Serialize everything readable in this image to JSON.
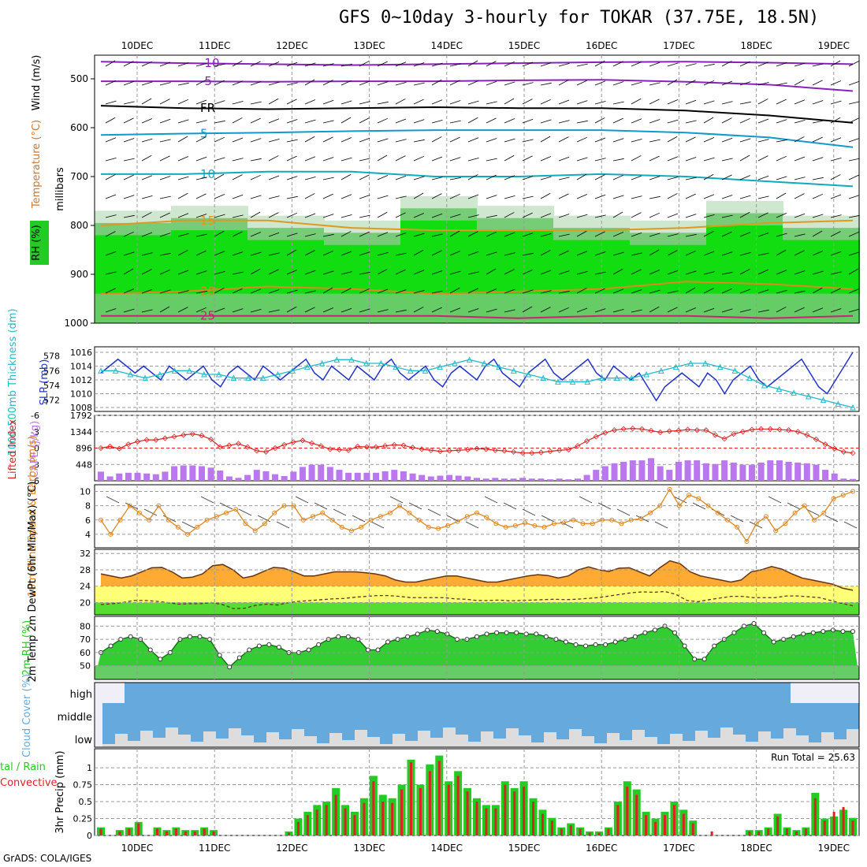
{
  "title": "GFS 0~10day 3-hourly for TOKAR (37.75E, 18.5N)",
  "credit": "GrADS: COLA/IGES",
  "colors": {
    "cyan": "#22bbcc",
    "blue": "#2233cc",
    "red": "#dd2222",
    "purple": "#bb77ee",
    "orange": "#dd8822",
    "green": "#22cc22",
    "cloud": "#66aadd"
  },
  "chart_data": [
    {
      "type": "heatmap",
      "name": "upper-air",
      "x_ticks": [
        "10DEC",
        "11DEC",
        "12DEC",
        "13DEC",
        "14DEC",
        "15DEC",
        "16DEC",
        "17DEC",
        "18DEC",
        "19DEC"
      ],
      "ylabel": "millibars",
      "y_ticks": [
        "500",
        "600",
        "700",
        "800",
        "900",
        "1000"
      ],
      "side_labels": [
        "Wind (m/s)",
        "Temperature (°C)",
        "RH (%)"
      ],
      "isotherms": [
        {
          "label": "-10",
          "p": [
            465,
            468,
            470,
            472,
            470,
            468,
            466,
            465,
            467,
            470
          ]
        },
        {
          "label": "-5",
          "p": [
            505,
            505,
            506,
            505,
            505,
            503,
            502,
            506,
            512,
            525
          ]
        },
        {
          "label": "FR",
          "p": [
            555,
            560,
            562,
            560,
            558,
            560,
            560,
            565,
            575,
            590
          ]
        },
        {
          "label": "5",
          "p": [
            615,
            612,
            610,
            607,
            605,
            605,
            605,
            610,
            620,
            640
          ]
        },
        {
          "label": "10",
          "p": [
            695,
            695,
            690,
            690,
            700,
            700,
            695,
            700,
            710,
            720
          ]
        },
        {
          "label": "15",
          "p": [
            800,
            790,
            790,
            805,
            810,
            810,
            810,
            805,
            795,
            790
          ]
        },
        {
          "label": "20",
          "p": [
            940,
            935,
            925,
            930,
            940,
            935,
            930,
            915,
            920,
            930
          ]
        },
        {
          "label": "25",
          "p": [
            985,
            985,
            985,
            985,
            985,
            990,
            985,
            985,
            990,
            985
          ]
        }
      ]
    },
    {
      "type": "line",
      "name": "slp-thickness",
      "left_label": "1000-500mb Thickness (dm)",
      "right_label": "SLP (mb)",
      "yticks_left": [
        "572",
        "574",
        "576",
        "578"
      ],
      "yticks_right": [
        "1008",
        "1010",
        "1012",
        "1014",
        "1016"
      ],
      "slp": [
        1013,
        1014,
        1015,
        1014,
        1013,
        1014,
        1013,
        1012,
        1014,
        1013,
        1012,
        1013,
        1014,
        1012,
        1011,
        1013,
        1014,
        1013,
        1012,
        1014,
        1013,
        1012,
        1013,
        1014,
        1015,
        1013,
        1012,
        1014,
        1013,
        1012,
        1014,
        1013,
        1012,
        1014,
        1015,
        1013,
        1012,
        1013,
        1014,
        1012,
        1011,
        1013,
        1014,
        1013,
        1012,
        1014,
        1015,
        1013,
        1012,
        1011,
        1013,
        1014,
        1015,
        1013,
        1012,
        1013,
        1014,
        1015,
        1013,
        1012,
        1014,
        1013,
        1012,
        1013,
        1011,
        1009,
        1011,
        1012,
        1013,
        1012,
        1011,
        1013,
        1012,
        1010,
        1012,
        1013,
        1014,
        1012,
        1011,
        1012,
        1013,
        1014,
        1015,
        1013,
        1011,
        1010,
        1012,
        1014,
        1016
      ],
      "thickness": [
        576,
        576,
        575.5,
        575,
        575.5,
        576,
        576,
        575.5,
        575.5,
        575,
        575,
        575,
        575.5,
        576,
        576.5,
        577,
        577.5,
        577.5,
        577,
        577,
        576.5,
        576,
        576,
        576.5,
        577,
        577.5,
        577,
        576.5,
        576,
        575.5,
        575,
        574.5,
        574.5,
        574.5,
        575,
        575,
        575,
        575.5,
        576,
        576.5,
        577,
        577,
        576.5,
        576,
        575,
        574,
        573.5,
        573,
        572.5,
        572,
        571.5,
        571
      ]
    },
    {
      "type": "bar",
      "name": "lifted-cape",
      "left_label": "Lifted Index",
      "right_label": "CAPE (J/kg)",
      "yticks_left": [
        "-6",
        "-3",
        "0",
        "3",
        "6"
      ],
      "yticks_right": [
        "1792",
        "1344",
        "896",
        "448"
      ],
      "cape": [
        250,
        120,
        200,
        220,
        220,
        200,
        180,
        250,
        400,
        420,
        420,
        400,
        360,
        280,
        120,
        80,
        160,
        300,
        260,
        180,
        130,
        250,
        380,
        440,
        440,
        380,
        300,
        220,
        220,
        220,
        220,
        260,
        300,
        260,
        200,
        160,
        120,
        140,
        160,
        140,
        120,
        80,
        60,
        80,
        60,
        60,
        80,
        60,
        60,
        40,
        60,
        40,
        60,
        160,
        300,
        400,
        480,
        520,
        560,
        560,
        620,
        400,
        300,
        520,
        560,
        560,
        480,
        460,
        560,
        500,
        440,
        440,
        500,
        560,
        560,
        520,
        500,
        480,
        440,
        300,
        200,
        60,
        50
      ],
      "lifted": [
        0,
        -0.3,
        0.1,
        -0.7,
        -1.2,
        -1.5,
        -1.5,
        -1.8,
        -2.1,
        -2.4,
        -2.6,
        -2.3,
        -1.6,
        -0.2,
        -0.5,
        -0.8,
        -0.2,
        0.5,
        0.7,
        0,
        -0.6,
        -1.1,
        -1.4,
        -0.9,
        -0.4,
        0.2,
        0.3,
        0.4,
        -0.3,
        -0.2,
        -0.2,
        -0.4,
        -0.6,
        -0.5,
        -0.1,
        0.2,
        0.4,
        0.6,
        0.5,
        0.4,
        0.3,
        0.1,
        0.2,
        0.4,
        0.5,
        0.7,
        0.9,
        0.9,
        0.8,
        0.6,
        0.4,
        0.3,
        -0.4,
        -1.3,
        -2.1,
        -2.8,
        -3.3,
        -3.5,
        -3.6,
        -3.5,
        -3.2,
        -2.9,
        -3.1,
        -3.2,
        -3.4,
        -3.3,
        -3.3,
        -2.4,
        -1.7,
        -2.6,
        -3,
        -3.4,
        -3.5,
        -3.5,
        -3.4,
        -3.3,
        -3,
        -2.4,
        -1.6,
        -0.7,
        0.1,
        0.7,
        0.9
      ]
    },
    {
      "type": "line",
      "name": "wind10m",
      "label": "10m Wind Speed & Barbs (m/s)",
      "yticks": [
        "4",
        "6",
        "8",
        "10"
      ],
      "speed": [
        6,
        4,
        6,
        8,
        7,
        6,
        8,
        6,
        5,
        4,
        5,
        6,
        6.5,
        7,
        7.5,
        5.5,
        4.5,
        5.5,
        7,
        8,
        8,
        6,
        6.5,
        7,
        6,
        5,
        4.5,
        5,
        6,
        6.5,
        7,
        8,
        7,
        6,
        5,
        4.8,
        5.2,
        5.8,
        6.5,
        7,
        6.4,
        5.5,
        5,
        5.2,
        5.6,
        5.2,
        5,
        5.5,
        5.6,
        6,
        5.5,
        5.5,
        6,
        6,
        5.5,
        6,
        6.2,
        7,
        8,
        10.3,
        8,
        9.5,
        9,
        8,
        7,
        6,
        5,
        3,
        5.5,
        6.5,
        4.5,
        5.5,
        7,
        8,
        6,
        7,
        9,
        9.5,
        10
      ]
    },
    {
      "type": "area",
      "name": "temperature",
      "label": "2m Temp 2m DewPt (6hr Min/Max) (°C)",
      "yticks": [
        "20",
        "24",
        "28",
        "32"
      ],
      "temp": [
        27,
        26.5,
        26,
        26.5,
        27.5,
        28.5,
        28.6,
        27.5,
        26,
        26.2,
        27,
        29,
        29.3,
        28,
        26,
        26.5,
        27.6,
        28.6,
        28.4,
        27.5,
        26.5,
        26.5,
        27,
        27.5,
        27.5,
        27.5,
        27.3,
        27,
        26.5,
        25.5,
        25,
        25,
        25.5,
        26,
        26.5,
        26.5,
        26,
        25.5,
        25,
        25,
        25.5,
        26,
        26.5,
        26.8,
        26.6,
        26,
        26.5,
        28,
        28.7,
        28,
        27.6,
        28.4,
        28.5,
        27.5,
        26.5,
        28.5,
        30.2,
        29.5,
        27.5,
        26.5,
        26,
        25.5,
        25,
        25.5,
        27.5,
        28,
        28.8,
        28.2,
        27,
        26,
        25.5,
        25,
        24.5,
        23.5,
        23
      ],
      "dew": [
        19.5,
        19.7,
        20,
        20.5,
        20.5,
        20.3,
        20,
        19.6,
        19.7,
        19.7,
        20,
        19.5,
        18.5,
        18.6,
        19.3,
        19.6,
        19.4,
        20,
        20.3,
        20.5,
        20.7,
        20.9,
        21,
        21.3,
        21.5,
        21.7,
        21.7,
        21.5,
        21.2,
        21.2,
        21.2,
        21.2,
        20.9,
        20.8,
        20.5,
        20.5,
        20.6,
        20.4,
        20.5,
        20.6,
        20.7,
        20.8,
        20.7,
        20.8,
        21,
        21.2,
        21.6,
        22,
        22.4,
        22.6,
        22.5,
        22.7,
        22,
        20.5,
        20.2,
        20.7,
        21.1,
        21.5,
        21.5,
        21.2,
        21.2,
        21.2,
        21.6,
        21.6,
        21.4,
        21.2,
        20.5,
        19.8,
        19.2
      ]
    },
    {
      "type": "area",
      "name": "rh2m",
      "label": "2m RH (%)",
      "yticks": [
        "50",
        "60",
        "70",
        "80"
      ],
      "rh": [
        60,
        65,
        70,
        72,
        70,
        62,
        55,
        60,
        70,
        72,
        72,
        70,
        58,
        49,
        56,
        62,
        65,
        66,
        64,
        60,
        60,
        62,
        66,
        70,
        72,
        72,
        70,
        62,
        62,
        68,
        70,
        72,
        74,
        77,
        76,
        74,
        70,
        70,
        72,
        74,
        75,
        75,
        75,
        74,
        74,
        72,
        70,
        68,
        66,
        65,
        66,
        66,
        68,
        70,
        72,
        75,
        77,
        80,
        75,
        65,
        55,
        55,
        65,
        70,
        75,
        80,
        82,
        75,
        68,
        70,
        72,
        74,
        75,
        76,
        77,
        76,
        76
      ]
    },
    {
      "type": "area",
      "name": "cloud",
      "label": "Cloud Cover (%)",
      "levels": [
        "high",
        "middle",
        "low"
      ]
    },
    {
      "type": "bar",
      "name": "precip",
      "label": "3hr Precip (mm)",
      "side_label": "Total / Rain Convective",
      "yticks": [
        "0",
        "0.25",
        "0.5",
        "0.75",
        "1"
      ],
      "run_total_label": "Run Total = 25.63",
      "x_ticks": [
        "10DEC",
        "11DEC",
        "12DEC",
        "13DEC",
        "14DEC",
        "15DEC",
        "16DEC",
        "17DEC",
        "18DEC",
        "19DEC"
      ],
      "total": [
        0.12,
        0,
        0.08,
        0.12,
        0.2,
        0,
        0.12,
        0.08,
        0.12,
        0.08,
        0.08,
        0.12,
        0.08,
        0,
        0,
        0,
        0,
        0,
        0,
        0,
        0.06,
        0.25,
        0.35,
        0.45,
        0.5,
        0.7,
        0.45,
        0.35,
        0.55,
        0.88,
        0.6,
        0.55,
        0.75,
        1.12,
        0.75,
        1.05,
        1.18,
        0.8,
        0.95,
        0.7,
        0.55,
        0.45,
        0.45,
        0.8,
        0.7,
        0.8,
        0.55,
        0.38,
        0.26,
        0.12,
        0.18,
        0.12,
        0.06,
        0.06,
        0.12,
        0.5,
        0.8,
        0.68,
        0.35,
        0.25,
        0.35,
        0.5,
        0.38,
        0.22,
        0,
        0,
        0,
        0,
        0,
        0.08,
        0.08,
        0.12,
        0.32,
        0.12,
        0.08,
        0.12,
        0.63,
        0.25,
        0.28,
        0.38,
        0.26
      ],
      "rain": [
        0.1,
        0,
        0.06,
        0.1,
        0.18,
        0,
        0.1,
        0.06,
        0.1,
        0.06,
        0.06,
        0.1,
        0.06,
        0,
        0,
        0,
        0,
        0,
        0,
        0,
        0.04,
        0.2,
        0.3,
        0.38,
        0.45,
        0.6,
        0.4,
        0.3,
        0.48,
        0.8,
        0.5,
        0.48,
        0.68,
        1.08,
        0.7,
        0.95,
        1.1,
        0.75,
        0.88,
        0.65,
        0.5,
        0.4,
        0.4,
        0.75,
        0.65,
        0.72,
        0.5,
        0.32,
        0.22,
        0.1,
        0.15,
        0.1,
        0.04,
        0.04,
        0.1,
        0.45,
        0.72,
        0.6,
        0.3,
        0.2,
        0.3,
        0.45,
        0.32,
        0.18,
        0,
        0.06,
        0,
        0,
        0,
        0.06,
        0.06,
        0.1,
        0.28,
        0.1,
        0.06,
        0.1,
        0.55,
        0.22,
        0.35,
        0.42,
        0.22
      ]
    }
  ]
}
